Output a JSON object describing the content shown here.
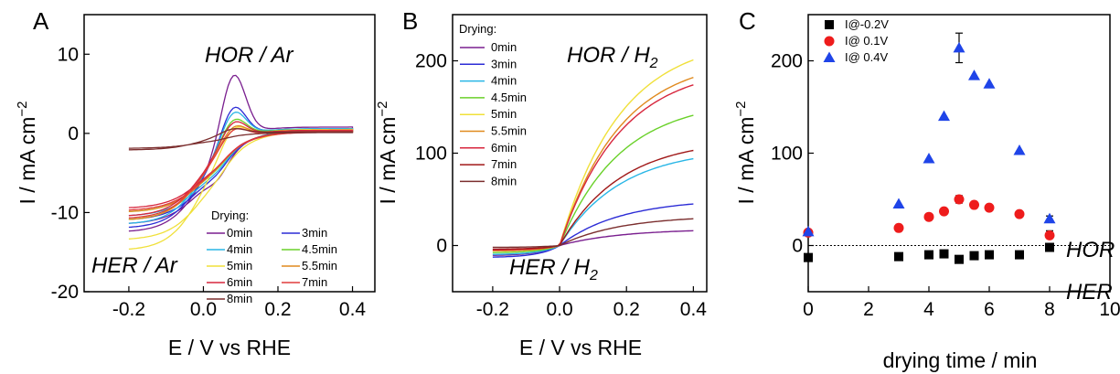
{
  "panels": {
    "a": "A",
    "b": "B",
    "c": "C"
  },
  "chart_data": [
    {
      "type": "line",
      "panel": "A",
      "title": "",
      "xlabel": "E / V vs RHE",
      "ylabel": "I / mA cm",
      "ylabel_sup": "−2",
      "xlim": [
        -0.32,
        0.46
      ],
      "ylim": [
        -20,
        15
      ],
      "xticks": [
        "-0.2",
        "0.0",
        "0.2",
        "0.4"
      ],
      "yticks": [
        "-20",
        "-10",
        "0",
        "10"
      ],
      "annotations": [
        "HOR / Ar",
        "HER / Ar"
      ],
      "legend_title": "Drying:",
      "legend_placement": "lower-right",
      "series": [
        {
          "name": "0min",
          "color": "#7a1f8f",
          "peak": 9.2,
          "plateau": 0.8,
          "ecat": -11.5,
          "eanod": -12.5
        },
        {
          "name": "3min",
          "color": "#2c2cd6",
          "peak": 5.0,
          "plateau": 0.6,
          "ecat": -11.0,
          "eanod": -12.0
        },
        {
          "name": "4min",
          "color": "#29b6e6",
          "peak": 4.3,
          "plateau": 0.6,
          "ecat": -10.5,
          "eanod": -11.5
        },
        {
          "name": "4.5min",
          "color": "#6ad12a",
          "peak": 3.3,
          "plateau": 0.5,
          "ecat": -10.0,
          "eanod": -11.0
        },
        {
          "name": "5min",
          "color": "#f0e03a",
          "peak": 2.7,
          "plateau": 0.5,
          "ecat": -13.5,
          "eanod": -14.8
        },
        {
          "name": "5.5min",
          "color": "#e08a1e",
          "peak": 2.4,
          "plateau": 0.4,
          "ecat": -10.0,
          "eanod": -11.0
        },
        {
          "name": "6min",
          "color": "#d7263d",
          "peak": 2.9,
          "plateau": 0.4,
          "ecat": -9.5,
          "eanod": -10.5
        },
        {
          "name": "7min",
          "color": "#e03b3b",
          "peak": 2.0,
          "plateau": 0.3,
          "ecat": -9.8,
          "eanod": -10.8
        },
        {
          "name": "8min",
          "color": "#7b2e2e",
          "peak": 0.9,
          "plateau": 0.2,
          "ecat": -1.9,
          "eanod": -2.1
        }
      ]
    },
    {
      "type": "line",
      "panel": "B",
      "title": "",
      "xlabel": "E / V vs RHE",
      "ylabel": "I / mA cm",
      "ylabel_sup": "−2",
      "xlim": [
        -0.32,
        0.44
      ],
      "ylim": [
        -50,
        250
      ],
      "xticks": [
        "-0.2",
        "0.0",
        "0.2",
        "0.4"
      ],
      "yticks": [
        "0",
        "100",
        "200"
      ],
      "annotations": [
        "HOR / H",
        "HER / H"
      ],
      "annotation_sub": "2",
      "legend_title": "Drying:",
      "legend_placement": "top-left",
      "series": [
        {
          "name": "0min",
          "color": "#7a1f8f",
          "end": 16,
          "hneg": -11
        },
        {
          "name": "3min",
          "color": "#2c2cd6",
          "end": 45,
          "hneg": -13
        },
        {
          "name": "4min",
          "color": "#29b6e6",
          "end": 94,
          "hneg": -10
        },
        {
          "name": "4.5min",
          "color": "#6ad12a",
          "end": 141,
          "hneg": -8
        },
        {
          "name": "5min",
          "color": "#f0e03a",
          "end": 201,
          "hneg": -6
        },
        {
          "name": "5.5min",
          "color": "#e08a1e",
          "end": 182,
          "hneg": -6
        },
        {
          "name": "6min",
          "color": "#d7263d",
          "end": 174,
          "hneg": -5
        },
        {
          "name": "7min",
          "color": "#a01818",
          "end": 103,
          "hneg": -4
        },
        {
          "name": "8min",
          "color": "#7b2e2e",
          "end": 29,
          "hneg": -2
        }
      ]
    },
    {
      "type": "scatter",
      "panel": "C",
      "title": "",
      "xlabel": "drying time / min",
      "ylabel": "I / mA cm",
      "ylabel_sup": "−2",
      "xlim": [
        0,
        10
      ],
      "ylim": [
        -50,
        250
      ],
      "xticks": [
        "0",
        "2",
        "4",
        "6",
        "8",
        "10"
      ],
      "yticks": [
        "0",
        "100",
        "200"
      ],
      "annotations": [
        "HOR",
        "HER"
      ],
      "legend_placement": "top-left",
      "x": [
        0,
        3,
        4,
        4.5,
        5,
        5.5,
        6,
        7,
        8
      ],
      "series": [
        {
          "name": "I@-0.2V",
          "marker": "square",
          "color": "#000000",
          "values": [
            -13,
            -12,
            -10,
            -9,
            -15,
            -11,
            -10,
            -10,
            -2
          ]
        },
        {
          "name": "I@ 0.1V",
          "marker": "circle",
          "color": "#ee1c1c",
          "values": [
            14,
            19,
            31,
            37,
            50,
            44,
            41,
            34,
            11
          ]
        },
        {
          "name": "I@ 0.4V",
          "marker": "triangle",
          "color": "#1f44e8",
          "values": [
            15,
            45,
            94,
            140,
            214,
            184,
            175,
            103,
            29
          ]
        }
      ],
      "error_bars": [
        {
          "series": "I@ 0.4V",
          "x": 5,
          "low": 198,
          "high": 230
        },
        {
          "series": "I@ 0.1V",
          "x": 5,
          "low": 46,
          "high": 54
        },
        {
          "series": "I@ 0.4V",
          "x": 8,
          "low": 26,
          "high": 32
        },
        {
          "series": "I@ 0.1V",
          "x": 8,
          "low": 8,
          "high": 16
        }
      ]
    }
  ]
}
